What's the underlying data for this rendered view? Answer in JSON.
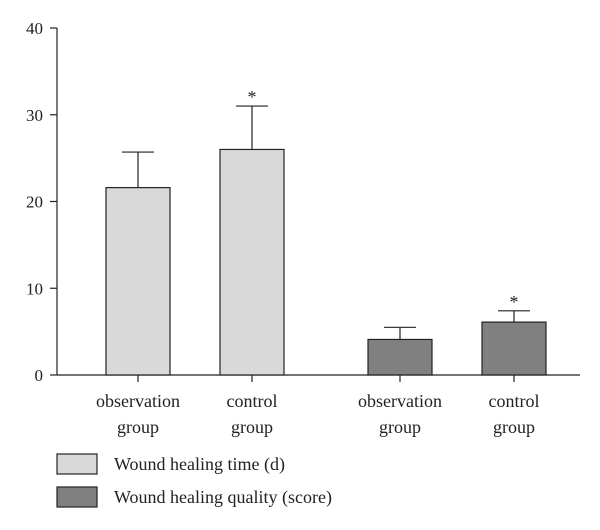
{
  "chart_data": {
    "type": "bar",
    "ylim": [
      0,
      40
    ],
    "yticks": [
      "0",
      "10",
      "20",
      "30",
      "40"
    ],
    "categories": [
      {
        "line1": "observation",
        "line2": "group"
      },
      {
        "line1": "control",
        "line2": "group"
      },
      {
        "line1": "observation",
        "line2": "group"
      },
      {
        "line1": "control",
        "line2": "group"
      }
    ],
    "series": [
      {
        "name": "Wound healing time (d)",
        "color": "#d9d9d9",
        "bars": [
          {
            "category_index": 0,
            "value": 21.6,
            "error": 4.1,
            "annotation": ""
          },
          {
            "category_index": 1,
            "value": 26.0,
            "error": 5.0,
            "annotation": "*"
          }
        ]
      },
      {
        "name": "Wound healing quality (score)",
        "color": "#808080",
        "bars": [
          {
            "category_index": 2,
            "value": 4.1,
            "error": 1.4,
            "annotation": ""
          },
          {
            "category_index": 3,
            "value": 6.1,
            "error": 1.3,
            "annotation": "*"
          }
        ]
      }
    ],
    "grid": false,
    "legend_position": "bottom-left"
  }
}
